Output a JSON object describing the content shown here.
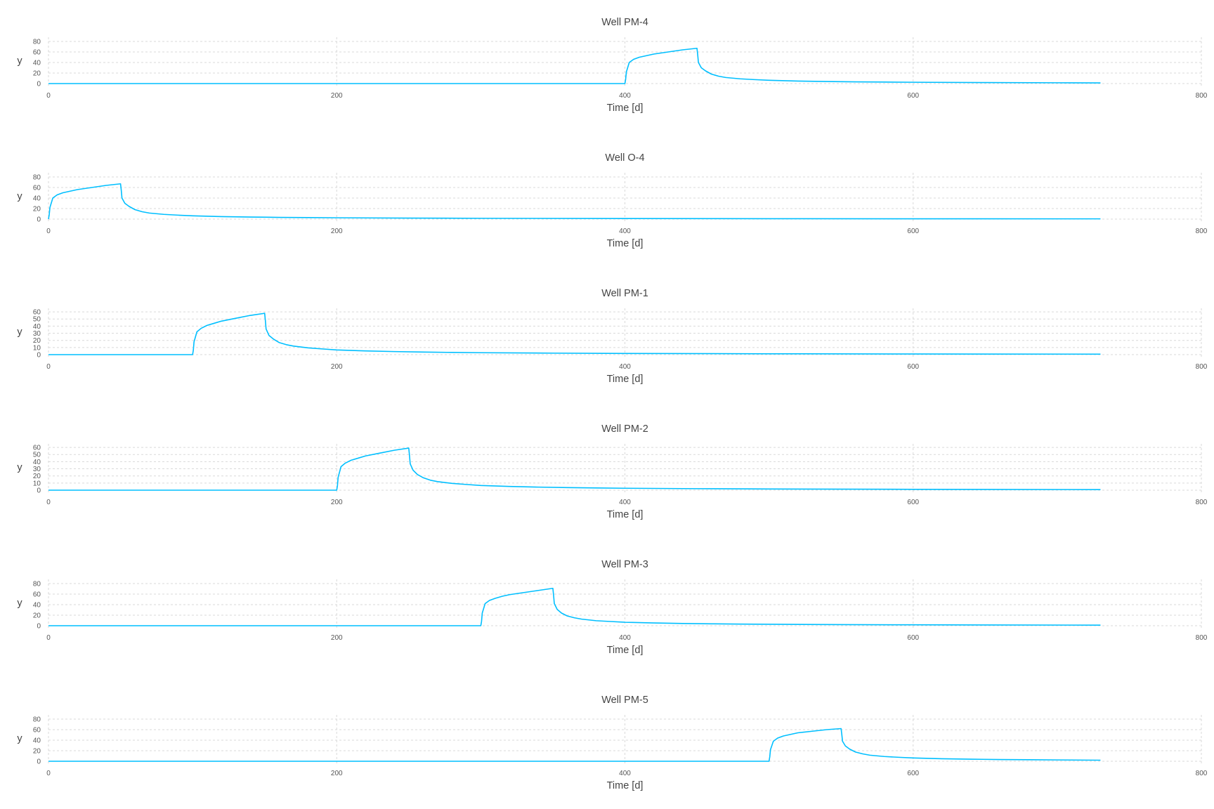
{
  "style": {
    "line_color": "#00bfff",
    "grid_color": "#d9d9d9",
    "text_color": "#444444"
  },
  "chart_data": [
    {
      "type": "line",
      "title": "Well PM-4",
      "xlabel": "Time [d]",
      "ylabel": "y",
      "xlim": [
        0,
        800
      ],
      "ylim": [
        0,
        88
      ],
      "x_ticks": [
        0,
        200,
        400,
        600,
        800
      ],
      "y_ticks": [
        0,
        20,
        40,
        60,
        80
      ],
      "grid": true,
      "series": [
        {
          "x": [
            0,
            400,
            400.5,
            401,
            403,
            406,
            410,
            415,
            420,
            430,
            440,
            450,
            450.5,
            451,
            453,
            456,
            460,
            465,
            470,
            480,
            490,
            500,
            520,
            540,
            560,
            580,
            600,
            650,
            700,
            730
          ],
          "y": [
            0,
            0,
            8,
            22,
            40,
            46,
            50,
            53,
            56,
            60,
            64,
            67,
            55,
            40,
            30,
            24,
            18,
            14,
            11.5,
            9,
            7.5,
            6.2,
            4.8,
            3.9,
            3.3,
            2.9,
            2.5,
            1.9,
            1.5,
            1.3
          ]
        }
      ]
    },
    {
      "type": "line",
      "title": "Well O-4",
      "xlabel": "Time [d]",
      "ylabel": "y",
      "xlim": [
        0,
        800
      ],
      "ylim": [
        0,
        88
      ],
      "x_ticks": [
        0,
        200,
        400,
        600,
        800
      ],
      "y_ticks": [
        0,
        20,
        40,
        60,
        80
      ],
      "grid": true,
      "series": [
        {
          "x": [
            0,
            0.5,
            1,
            3,
            6,
            10,
            15,
            20,
            30,
            40,
            50,
            50.5,
            51,
            53,
            56,
            60,
            65,
            70,
            80,
            90,
            100,
            120,
            140,
            160,
            180,
            200,
            250,
            300,
            400,
            500,
            600,
            730
          ],
          "y": [
            0,
            8,
            22,
            40,
            46,
            50,
            53,
            56,
            60,
            64,
            67,
            55,
            40,
            30,
            24,
            18,
            14,
            11.5,
            9,
            7.5,
            6.2,
            4.8,
            3.9,
            3.3,
            2.9,
            2.5,
            1.9,
            1.5,
            1.1,
            0.8,
            0.6,
            0.5
          ]
        }
      ]
    },
    {
      "type": "line",
      "title": "Well PM-1",
      "xlabel": "Time [d]",
      "ylabel": "y",
      "xlim": [
        0,
        800
      ],
      "ylim": [
        0,
        65
      ],
      "x_ticks": [
        0,
        200,
        400,
        600,
        800
      ],
      "y_ticks": [
        0,
        10,
        20,
        30,
        40,
        50,
        60
      ],
      "grid": true,
      "series": [
        {
          "x": [
            0,
            100,
            100.5,
            101,
            103,
            106,
            110,
            115,
            120,
            130,
            140,
            150,
            150.5,
            151,
            153,
            156,
            160,
            165,
            170,
            180,
            190,
            200,
            220,
            240,
            260,
            280,
            300,
            350,
            400,
            500,
            600,
            730
          ],
          "y": [
            0,
            0,
            6,
            18,
            32,
            37,
            41,
            44,
            47,
            51,
            55,
            58,
            48,
            36,
            27,
            22,
            17,
            14,
            12,
            9.5,
            8,
            6.6,
            5.2,
            4.3,
            3.6,
            3.1,
            2.7,
            2.1,
            1.7,
            1.2,
            0.9,
            0.7
          ]
        }
      ]
    },
    {
      "type": "line",
      "title": "Well PM-2",
      "xlabel": "Time [d]",
      "ylabel": "y",
      "xlim": [
        0,
        800
      ],
      "ylim": [
        0,
        65
      ],
      "x_ticks": [
        0,
        200,
        400,
        600,
        800
      ],
      "y_ticks": [
        0,
        10,
        20,
        30,
        40,
        50,
        60
      ],
      "grid": true,
      "series": [
        {
          "x": [
            0,
            200,
            200.5,
            201,
            203,
            206,
            210,
            215,
            220,
            230,
            240,
            250,
            250.5,
            251,
            253,
            256,
            260,
            265,
            270,
            280,
            290,
            300,
            320,
            340,
            360,
            380,
            400,
            450,
            500,
            600,
            730
          ],
          "y": [
            0,
            0,
            6,
            18,
            33,
            38,
            42,
            45,
            48,
            52,
            56,
            59,
            49,
            37,
            28,
            22,
            17.5,
            14,
            12,
            9.5,
            8,
            6.6,
            5.2,
            4.3,
            3.6,
            3.1,
            2.7,
            2.1,
            1.7,
            1.2,
            0.8
          ]
        }
      ]
    },
    {
      "type": "line",
      "title": "Well PM-3",
      "xlabel": "Time [d]",
      "ylabel": "y",
      "xlim": [
        0,
        800
      ],
      "ylim": [
        0,
        88
      ],
      "x_ticks": [
        0,
        200,
        400,
        600,
        800
      ],
      "y_ticks": [
        0,
        20,
        40,
        60,
        80
      ],
      "grid": true,
      "series": [
        {
          "x": [
            0,
            300,
            300.5,
            301,
            303,
            306,
            310,
            315,
            320,
            330,
            340,
            350,
            350.5,
            351,
            353,
            356,
            360,
            365,
            370,
            380,
            390,
            400,
            420,
            440,
            460,
            480,
            500,
            550,
            600,
            650,
            730
          ],
          "y": [
            0,
            0,
            8,
            24,
            42,
            48,
            52,
            56,
            59,
            63,
            67,
            71,
            58,
            42,
            31,
            24,
            18.5,
            15,
            12.5,
            9.5,
            8,
            6.6,
            5.2,
            4.3,
            3.6,
            3.1,
            2.7,
            2.1,
            1.7,
            1.4,
            1.1
          ]
        }
      ]
    },
    {
      "type": "line",
      "title": "Well PM-5",
      "xlabel": "Time [d]",
      "ylabel": "y",
      "xlim": [
        0,
        800
      ],
      "ylim": [
        0,
        88
      ],
      "x_ticks": [
        0,
        200,
        400,
        600,
        800
      ],
      "y_ticks": [
        0,
        20,
        40,
        60,
        80
      ],
      "grid": true,
      "series": [
        {
          "x": [
            0,
            500,
            500.5,
            501,
            503,
            506,
            510,
            515,
            520,
            530,
            540,
            550,
            550.5,
            551,
            553,
            556,
            560,
            565,
            570,
            580,
            590,
            600,
            620,
            640,
            660,
            680,
            700,
            730
          ],
          "y": [
            0,
            0,
            8,
            22,
            38,
            44,
            48,
            51,
            54,
            57,
            60,
            62,
            51,
            38,
            29,
            23,
            17.5,
            14,
            11.5,
            9,
            7.5,
            6.2,
            4.8,
            3.9,
            3.3,
            2.9,
            2.5,
            2.0
          ]
        }
      ]
    }
  ]
}
